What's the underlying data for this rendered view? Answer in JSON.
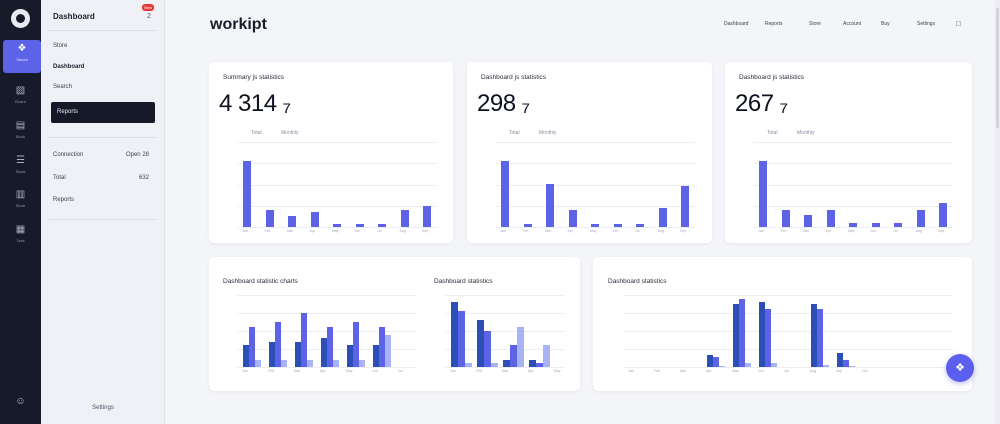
{
  "colors": {
    "accent": "#5d63e6",
    "accent_dark": "#2b4fb6",
    "accent_light": "#a8b2f4",
    "rail_bg": "#161a29",
    "badge": "#e53935"
  },
  "rail": {
    "items": [
      {
        "icon": "dashboard-icon",
        "glyph": "❖",
        "label": "Saved"
      },
      {
        "icon": "grid-icon",
        "glyph": "▧",
        "label": "Board"
      },
      {
        "icon": "document-icon",
        "glyph": "▤",
        "label": "Book"
      },
      {
        "icon": "layers-icon",
        "glyph": "☰",
        "label": "Stack"
      },
      {
        "icon": "folder-icon",
        "glyph": "▥",
        "label": "Store"
      },
      {
        "icon": "list-icon",
        "glyph": "▦",
        "label": "Task"
      }
    ],
    "bottom_icon": "user-icon"
  },
  "sidebar": {
    "title": "Dashboard",
    "count": "2",
    "badge": "New",
    "items": [
      "Store",
      "Dashboard",
      "Search",
      "Reports"
    ],
    "stats": [
      {
        "label": "Connection",
        "value": "Open 28"
      },
      {
        "label": "Total",
        "value": "632"
      },
      {
        "label": "Reports",
        "value": ""
      }
    ],
    "footer": "Settings"
  },
  "header": {
    "brand": "workipt",
    "nav": [
      "Dashboard",
      "Reports",
      "Store",
      "Account",
      "Buy",
      "Settings"
    ]
  },
  "kpis": [
    {
      "title": "Summary js statistics",
      "value": "4 314 ₇",
      "sub": [
        "Total",
        "Monthly"
      ]
    },
    {
      "title": "Dashboard js statistics",
      "value": "298 ₇",
      "sub": [
        "Total",
        "Monthly"
      ]
    },
    {
      "title": "Dashboard js statistics",
      "value": "267 ₇",
      "sub": [
        "Total",
        "Monthly"
      ]
    }
  ],
  "chart_data": [
    {
      "type": "bar",
      "title": "",
      "categories": [
        "Jan",
        "Feb",
        "Mar",
        "Apr",
        "May",
        "Jun",
        "Jul",
        "Aug",
        "Sep"
      ],
      "values": [
        78,
        20,
        13,
        18,
        4,
        4,
        4,
        20,
        25
      ],
      "ylim": [
        0,
        100
      ]
    },
    {
      "type": "bar",
      "title": "",
      "categories": [
        "Jan",
        "Feb",
        "Mar",
        "Apr",
        "May",
        "Jun",
        "Jul",
        "Aug",
        "Sep"
      ],
      "values": [
        78,
        3,
        51,
        20,
        4,
        4,
        4,
        22,
        48
      ],
      "ylim": [
        0,
        100
      ]
    },
    {
      "type": "bar",
      "title": "",
      "categories": [
        "Jan",
        "Feb",
        "Mar",
        "Apr",
        "May",
        "Jun",
        "Jul",
        "Aug",
        "Sep"
      ],
      "values": [
        78,
        20,
        14,
        20,
        5,
        5,
        5,
        20,
        28
      ],
      "ylim": [
        0,
        100
      ]
    },
    {
      "type": "bar",
      "title": "Dashboard statistic charts",
      "categories": [
        "Jan",
        "Feb",
        "Mar",
        "Apr",
        "May",
        "Jun",
        "Jul"
      ],
      "series": [
        {
          "values": [
            30,
            35,
            35,
            40,
            30,
            30,
            0
          ]
        },
        {
          "values": [
            55,
            62,
            75,
            55,
            62,
            55,
            0
          ]
        },
        {
          "values": [
            10,
            10,
            10,
            10,
            10,
            45,
            0
          ]
        }
      ],
      "ylim": [
        0,
        100
      ]
    },
    {
      "type": "bar",
      "title": "Dashboard statistics",
      "categories": [
        "Jan",
        "Feb",
        "Mar",
        "Apr",
        "May"
      ],
      "series": [
        {
          "values": [
            90,
            65,
            10,
            10,
            0
          ]
        },
        {
          "values": [
            78,
            50,
            30,
            5,
            0
          ]
        },
        {
          "values": [
            5,
            5,
            55,
            30,
            0
          ]
        }
      ],
      "ylim": [
        0,
        100
      ]
    },
    {
      "type": "bar",
      "title": "Dashboard statistics",
      "categories": [
        "Jan",
        "Feb",
        "Mar",
        "Apr",
        "May",
        "Jun",
        "Jul",
        "Aug",
        "Sep",
        "Oct"
      ],
      "series": [
        {
          "values": [
            0,
            0,
            0,
            16,
            88,
            90,
            0,
            88,
            20,
            0
          ]
        },
        {
          "values": [
            0,
            0,
            0,
            14,
            95,
            80,
            0,
            80,
            10,
            0
          ]
        },
        {
          "values": [
            0,
            0,
            0,
            2,
            5,
            5,
            0,
            3,
            2,
            0
          ]
        }
      ],
      "ylim": [
        0,
        100
      ]
    }
  ]
}
